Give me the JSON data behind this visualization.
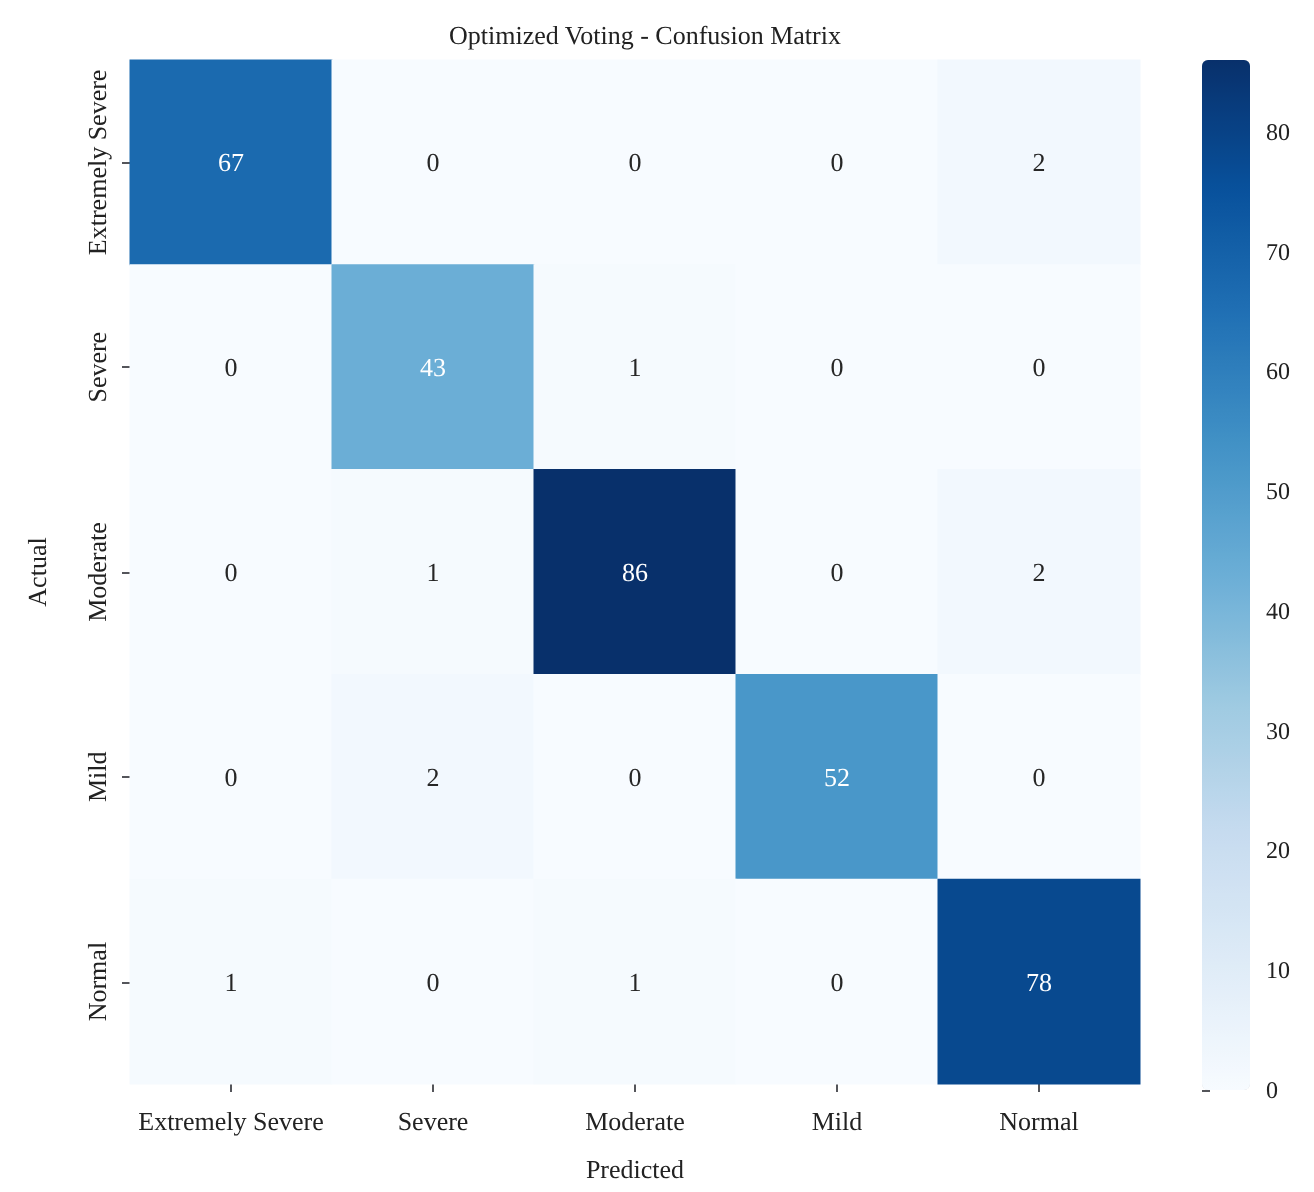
{
  "chart_data": {
    "type": "heatmap",
    "title": "Optimized Voting - Confusion Matrix",
    "xlabel": "Predicted",
    "ylabel": "Actual",
    "categories": [
      "Extremely Severe",
      "Severe",
      "Moderate",
      "Mild",
      "Normal"
    ],
    "y_categories": [
      "Extremely Severe",
      "Severe",
      "Moderate",
      "Mild",
      "Normal"
    ],
    "cells": [
      [
        67,
        0,
        0,
        0,
        2
      ],
      [
        0,
        43,
        1,
        0,
        0
      ],
      [
        0,
        1,
        86,
        0,
        2
      ],
      [
        0,
        2,
        0,
        52,
        0
      ],
      [
        1,
        0,
        1,
        0,
        78
      ]
    ],
    "data_labels": true,
    "clim": [
      0,
      86
    ],
    "cticks": [
      0,
      10,
      20,
      30,
      40,
      50,
      60,
      70,
      80
    ]
  }
}
